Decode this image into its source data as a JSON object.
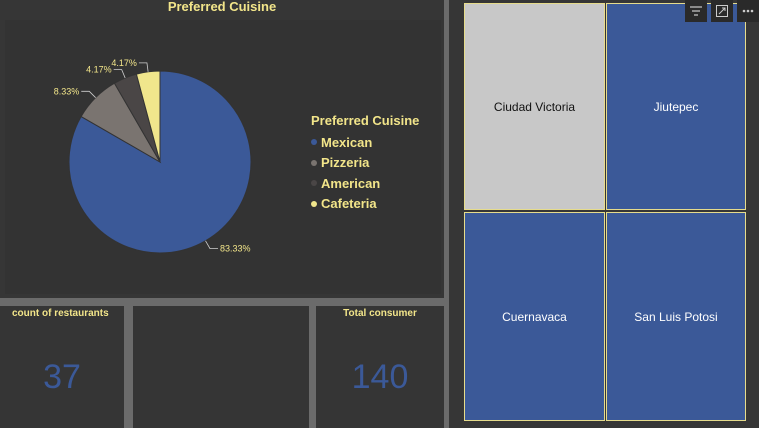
{
  "pie_chart": {
    "title": "Preferred Cuisine",
    "legend_title": "Preferred Cuisine",
    "slices": [
      {
        "label": "Mexican",
        "value": 83.33,
        "pct_label": "83.33%",
        "color": "#3b5998"
      },
      {
        "label": "Pizzeria",
        "value": 8.33,
        "pct_label": "8.33%",
        "color": "#7a7470"
      },
      {
        "label": "American",
        "value": 4.17,
        "pct_label": "4.17%",
        "color": "#4a4646"
      },
      {
        "label": "Cafeteria",
        "value": 4.17,
        "pct_label": "4.17%",
        "color": "#f0e68c"
      }
    ]
  },
  "chart_data": {
    "type": "pie",
    "title": "Preferred Cuisine",
    "categories": [
      "Mexican",
      "Pizzeria",
      "American",
      "Cafeteria"
    ],
    "values": [
      83.33,
      8.33,
      4.17,
      4.17
    ],
    "legend": "right"
  },
  "cards": {
    "restaurants": {
      "label": "count of restaurants",
      "value": "37"
    },
    "consumers": {
      "label": "Total consumer",
      "value": "140"
    }
  },
  "treemap": {
    "tiles": [
      {
        "label": "Ciudad Victoria",
        "color": "#c8c8c8",
        "text_color": "#111111"
      },
      {
        "label": "Jiutepec",
        "color": "#3b5998",
        "text_color": "#ffffff"
      },
      {
        "label": "Cuernavaca",
        "color": "#3b5998",
        "text_color": "#ffffff"
      },
      {
        "label": "San Luis Potosi",
        "color": "#3b5998",
        "text_color": "#ffffff"
      }
    ]
  },
  "toolbar": {
    "icons": [
      "filter-icon",
      "focus-mode-icon",
      "more-options-icon"
    ]
  }
}
